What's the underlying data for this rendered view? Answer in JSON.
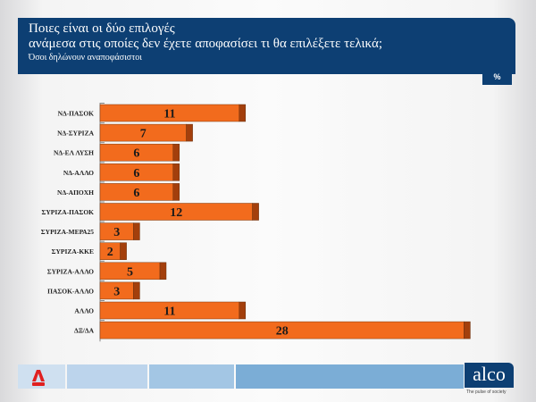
{
  "header": {
    "title_line1": "Ποιες είναι οι δύο επιλογές",
    "title_line2": "ανάμεσα στις οποίες δεν έχετε αποφασίσει τι θα επιλέξετε τελικά;",
    "subtitle": "Όσοι δηλώνουν αναποφάσιστοι",
    "unit_badge": "%"
  },
  "chart_data": {
    "type": "bar",
    "orientation": "horizontal",
    "categories": [
      "ΝΔ-ΠΑΣΟΚ",
      "ΝΔ-ΣΥΡΙΖΑ",
      "ΝΔ-ΕΛ ΛΥΣΗ",
      "ΝΔ-ΑΛΛΟ",
      "ΝΔ-ΑΠΟΧΗ",
      "ΣΥΡΙΖΑ-ΠΑΣΟΚ",
      "ΣΥΡΙΖΑ-ΜΕΡΑ25",
      "ΣΥΡΙΖΑ-ΚΚΕ",
      "ΣΥΡΙΖΑ-ΑΛΛΟ",
      "ΠΑΣΟΚ-ΑΛΛΟ",
      "ΑΛΛΟ",
      "ΔΞ/ΔΑ"
    ],
    "values": [
      11,
      7,
      6,
      6,
      6,
      12,
      3,
      2,
      5,
      3,
      11,
      28
    ],
    "bar_color": "#f26b1d",
    "bar_end_color": "#a33f0c",
    "xlim": [
      0,
      28
    ],
    "grid": false,
    "data_labels": true
  },
  "footer": {
    "brand": "alco",
    "tagline": "The pulse of society",
    "colors": [
      "#cfe0f0",
      "#bcd4ec",
      "#a3c6e4",
      "#7badd6"
    ]
  }
}
